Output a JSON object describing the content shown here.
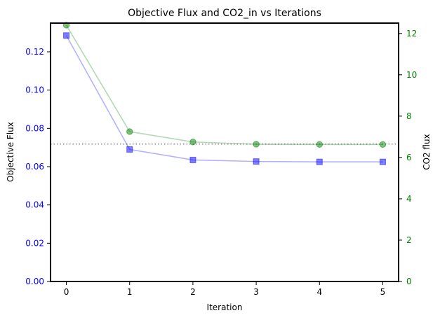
{
  "chart_data": {
    "type": "line",
    "title": "Objective Flux and CO2_in vs Iterations",
    "xlabel": "Iteration",
    "ylabel_left": "Objective Flux",
    "ylabel_right": "CO2 flux",
    "x": [
      0,
      1,
      2,
      3,
      4,
      5
    ],
    "xlim": [
      -0.25,
      5.25
    ],
    "x_ticks": [
      "0",
      "1",
      "2",
      "3",
      "4",
      "5"
    ],
    "ylim_left": [
      0,
      0.135
    ],
    "y_ticks_left": [
      "0.00",
      "0.02",
      "0.04",
      "0.06",
      "0.08",
      "0.10",
      "0.12"
    ],
    "ylim_right": [
      0,
      12.5
    ],
    "y_ticks_right": [
      "0",
      "2",
      "4",
      "6",
      "8",
      "10",
      "12"
    ],
    "series": [
      {
        "axis": "left",
        "values": [
          0.1285,
          0.069,
          0.0635,
          0.0627,
          0.0625,
          0.0625
        ],
        "color": "#0000ff",
        "marker": "square"
      },
      {
        "axis": "right",
        "values": [
          12.4,
          7.25,
          6.75,
          6.64,
          6.63,
          6.63
        ],
        "color": "#008000",
        "marker": "circle"
      }
    ],
    "reference_line": {
      "axis": "right",
      "value": 6.65,
      "style": "dotted",
      "color": "#808080"
    },
    "left_axis_color": "#0000ff",
    "right_axis_color": "#008000",
    "grid": false
  }
}
